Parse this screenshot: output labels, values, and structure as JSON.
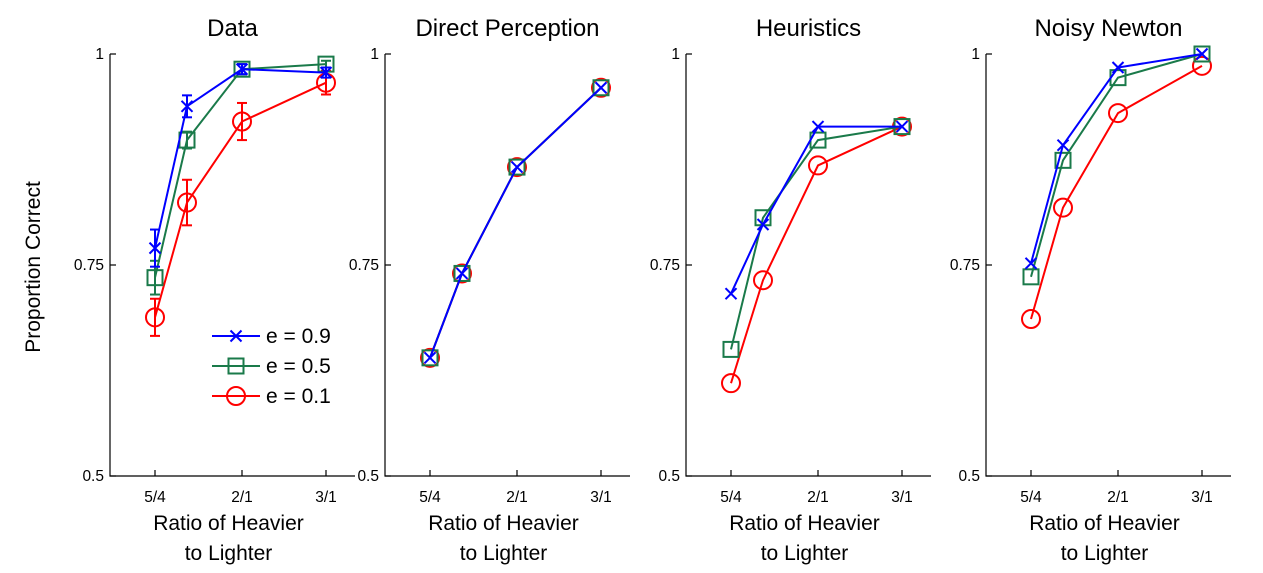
{
  "figure": {
    "ylabel": "Proportion Correct"
  },
  "legend": {
    "location": "lower-right of first panel",
    "entries": [
      {
        "label": "e = 0.9",
        "marker": "x",
        "color": "#0000ff"
      },
      {
        "label": "e = 0.5",
        "marker": "square",
        "color": "#1a7a4a"
      },
      {
        "label": "e = 0.1",
        "marker": "circle",
        "color": "#ff0000"
      }
    ]
  },
  "chart_data": [
    {
      "type": "line",
      "title": "Data",
      "xlabel": [
        "Ratio of Heavier",
        "to Lighter"
      ],
      "ylabel": "Proportion Correct",
      "x_ticks": [
        "5/4",
        "2/1",
        "3/1"
      ],
      "y_ticks": [
        "0.5",
        "0.75",
        "1"
      ],
      "ylim": [
        0.5,
        1
      ],
      "x": [
        1.25,
        1.5,
        2.0,
        3.0
      ],
      "error_bars": true,
      "series": [
        {
          "name": "e = 0.9",
          "color": "#0000ff",
          "marker": "x",
          "values": [
            0.77,
            0.938,
            0.982,
            0.978
          ],
          "errors": [
            0.022,
            0.013,
            0.006,
            0.006
          ]
        },
        {
          "name": "e = 0.5",
          "color": "#1a7a4a",
          "marker": "square",
          "values": [
            0.735,
            0.898,
            0.982,
            0.988
          ],
          "errors": [
            0.02,
            0.01,
            0.006,
            0.004
          ]
        },
        {
          "name": "e = 0.1",
          "color": "#ff0000",
          "marker": "circle",
          "values": [
            0.688,
            0.824,
            0.92,
            0.966
          ],
          "errors": [
            0.022,
            0.027,
            0.022,
            0.014
          ]
        }
      ]
    },
    {
      "type": "line",
      "title": "Direct Perception",
      "xlabel": [
        "Ratio of Heavier",
        "to Lighter"
      ],
      "x_ticks": [
        "5/4",
        "2/1",
        "3/1"
      ],
      "y_ticks": [
        "0.5",
        "0.75",
        "1"
      ],
      "ylim": [
        0.5,
        1
      ],
      "x": [
        1.25,
        1.5,
        2.0,
        3.0
      ],
      "series": [
        {
          "name": "e = 0.9",
          "color": "#0000ff",
          "marker": "x",
          "values": [
            0.64,
            0.74,
            0.866,
            0.96
          ]
        },
        {
          "name": "e = 0.5",
          "color": "#1a7a4a",
          "marker": "square",
          "values": [
            0.64,
            0.74,
            0.866,
            0.96
          ]
        },
        {
          "name": "e = 0.1",
          "color": "#ff0000",
          "marker": "circle",
          "values": [
            0.64,
            0.74,
            0.866,
            0.96
          ]
        }
      ]
    },
    {
      "type": "line",
      "title": "Heuristics",
      "xlabel": [
        "Ratio of Heavier",
        "to Lighter"
      ],
      "x_ticks": [
        "5/4",
        "2/1",
        "3/1"
      ],
      "y_ticks": [
        "0.5",
        "0.75",
        "1"
      ],
      "ylim": [
        0.5,
        1
      ],
      "x": [
        1.25,
        1.5,
        2.0,
        3.0
      ],
      "series": [
        {
          "name": "e = 0.9",
          "color": "#0000ff",
          "marker": "x",
          "values": [
            0.716,
            0.798,
            0.914,
            0.914
          ]
        },
        {
          "name": "e = 0.5",
          "color": "#1a7a4a",
          "marker": "square",
          "values": [
            0.65,
            0.806,
            0.898,
            0.914
          ]
        },
        {
          "name": "e = 0.1",
          "color": "#ff0000",
          "marker": "circle",
          "values": [
            0.61,
            0.732,
            0.868,
            0.914
          ]
        }
      ]
    },
    {
      "type": "line",
      "title": "Noisy Newton",
      "xlabel": [
        "Ratio of Heavier",
        "to Lighter"
      ],
      "x_ticks": [
        "5/4",
        "2/1",
        "3/1"
      ],
      "y_ticks": [
        "0.5",
        "0.75",
        "1"
      ],
      "ylim": [
        0.5,
        1
      ],
      "x": [
        1.25,
        1.5,
        2.0,
        3.0
      ],
      "series": [
        {
          "name": "e = 0.9",
          "color": "#0000ff",
          "marker": "x",
          "values": [
            0.752,
            0.892,
            0.984,
            1.0
          ]
        },
        {
          "name": "e = 0.5",
          "color": "#1a7a4a",
          "marker": "square",
          "values": [
            0.736,
            0.874,
            0.972,
            1.0
          ]
        },
        {
          "name": "e = 0.1",
          "color": "#ff0000",
          "marker": "circle",
          "values": [
            0.686,
            0.818,
            0.93,
            0.986
          ]
        }
      ]
    }
  ]
}
